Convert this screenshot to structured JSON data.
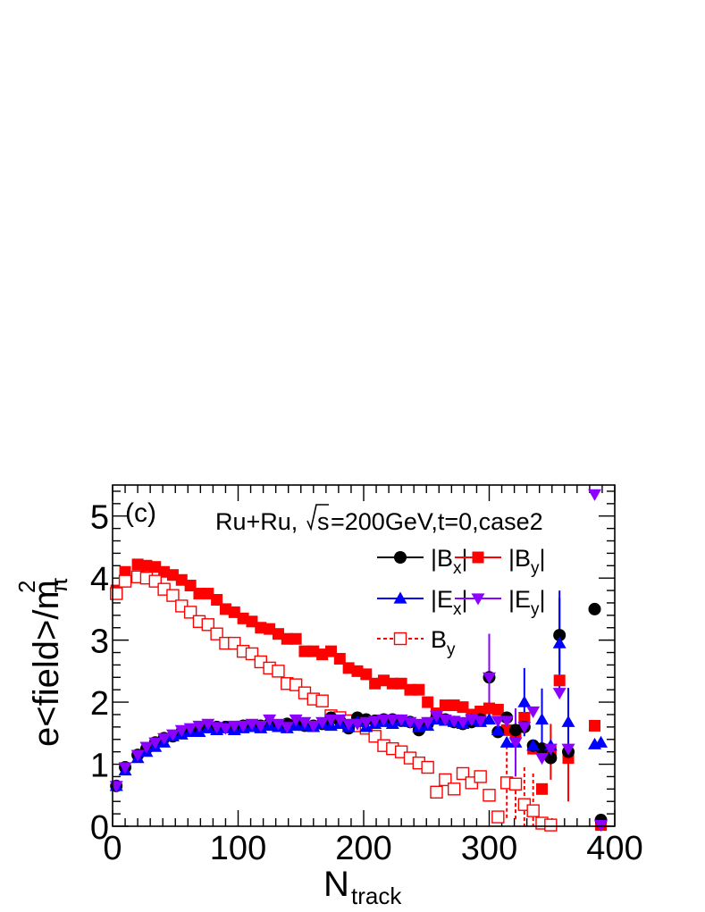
{
  "chart_data": {
    "type": "scatter",
    "panel_label": "(c)",
    "annotation": {
      "prefix": "Ru+Ru,",
      "sqrt": "s",
      "suffix": "=200GeV,t=0,case2"
    },
    "xlabel": {
      "main": "N",
      "sub": "track"
    },
    "ylabel": {
      "main": "e<field>/m",
      "sup": "2",
      "sub": "π"
    },
    "xlim": [
      0,
      400
    ],
    "ylim": [
      0,
      5.5
    ],
    "x_ticks": [
      "0",
      "100",
      "200",
      "300",
      "400"
    ],
    "y_ticks": [
      "0",
      "1",
      "2",
      "3",
      "4",
      "5"
    ],
    "legend": [
      {
        "key": "Bx",
        "base": "|B",
        "sub": "x",
        "tail": "|"
      },
      {
        "key": "By_abs",
        "base": "|B",
        "sub": "y",
        "tail": "|"
      },
      {
        "key": "Ex",
        "base": "|E",
        "sub": "x",
        "tail": "|"
      },
      {
        "key": "Ey",
        "base": "|E",
        "sub": "y",
        "tail": "|"
      },
      {
        "key": "By",
        "base": "B",
        "sub": "y",
        "tail": ""
      }
    ],
    "series": [
      {
        "key": "By_abs",
        "marker": "filled-square",
        "color": "#ff0000",
        "x": [
          3,
          10,
          20,
          27,
          34,
          41,
          48,
          55,
          62,
          69,
          76,
          83,
          90,
          97,
          104,
          111,
          118,
          125,
          132,
          139,
          146,
          153,
          160,
          167,
          174,
          181,
          188,
          195,
          202,
          209,
          216,
          223,
          230,
          237,
          244,
          251,
          258,
          265,
          272,
          279,
          286,
          293,
          300,
          307,
          314,
          321,
          328,
          335,
          342,
          349,
          356,
          363,
          384,
          389
        ],
        "y": [
          3.8,
          4.1,
          4.22,
          4.2,
          4.18,
          4.1,
          4.05,
          3.97,
          3.88,
          3.75,
          3.75,
          3.65,
          3.5,
          3.45,
          3.35,
          3.3,
          3.2,
          3.18,
          3.1,
          3.02,
          3.02,
          2.82,
          2.82,
          2.77,
          2.82,
          2.7,
          2.55,
          2.5,
          2.45,
          2.3,
          2.35,
          2.3,
          2.3,
          2.2,
          2.2,
          2.0,
          1.82,
          1.95,
          1.95,
          1.92,
          1.8,
          1.85,
          1.9,
          1.88,
          1.55,
          1.5,
          1.75,
          1.25,
          0.6,
          1.2,
          2.35,
          1.1,
          1.62,
          0.02
        ],
        "yerr": [
          0,
          0,
          0,
          0,
          0,
          0,
          0,
          0,
          0,
          0,
          0,
          0,
          0,
          0,
          0,
          0,
          0,
          0,
          0,
          0,
          0,
          0,
          0,
          0,
          0,
          0,
          0,
          0,
          0,
          0,
          0,
          0,
          0,
          0,
          0,
          0,
          0,
          0,
          0,
          0,
          0,
          0,
          0,
          0,
          0,
          0,
          0,
          0,
          0,
          0.45,
          0,
          0.7,
          0,
          0
        ]
      },
      {
        "key": "By",
        "marker": "open-square",
        "color": "#ff0000",
        "x": [
          3,
          10,
          20,
          27,
          34,
          41,
          48,
          55,
          62,
          69,
          76,
          83,
          90,
          97,
          104,
          111,
          118,
          125,
          132,
          139,
          146,
          153,
          160,
          167,
          174,
          181,
          188,
          195,
          202,
          209,
          216,
          223,
          230,
          237,
          244,
          251,
          258,
          265,
          272,
          279,
          286,
          293,
          300,
          307,
          314,
          321,
          328,
          335,
          342,
          349
        ],
        "y": [
          3.75,
          3.95,
          4.02,
          4.0,
          3.95,
          3.82,
          3.72,
          3.55,
          3.45,
          3.3,
          3.25,
          3.1,
          2.95,
          2.95,
          2.82,
          2.78,
          2.65,
          2.55,
          2.5,
          2.3,
          2.28,
          2.15,
          2.05,
          2.02,
          1.78,
          1.75,
          1.7,
          1.62,
          1.58,
          1.45,
          1.3,
          1.25,
          1.2,
          1.1,
          1.02,
          0.95,
          0.55,
          0.75,
          0.6,
          0.85,
          0.7,
          0.8,
          0.5,
          0.15,
          0.7,
          0.68,
          0.35,
          0.25,
          0.05,
          0.02
        ],
        "yerr": [
          0,
          0,
          0,
          0,
          0,
          0,
          0,
          0,
          0,
          0,
          0,
          0,
          0,
          0,
          0,
          0,
          0,
          0,
          0,
          0,
          0,
          0,
          0,
          0,
          0,
          0,
          0,
          0,
          0,
          0,
          0,
          0,
          0,
          0,
          0,
          0,
          0,
          0,
          0,
          0,
          0,
          0,
          0,
          0,
          0.6,
          0.6,
          0.6,
          0.6,
          0,
          0
        ]
      },
      {
        "key": "Bx",
        "marker": "filled-circle",
        "color": "#000000",
        "x": [
          3,
          10,
          20,
          27,
          34,
          41,
          48,
          55,
          62,
          69,
          76,
          83,
          90,
          97,
          104,
          111,
          118,
          125,
          132,
          139,
          146,
          153,
          160,
          167,
          174,
          181,
          188,
          195,
          202,
          209,
          216,
          223,
          230,
          237,
          244,
          251,
          258,
          265,
          272,
          279,
          286,
          293,
          300,
          307,
          314,
          321,
          328,
          335,
          342,
          349,
          356,
          363,
          384,
          389
        ],
        "y": [
          0.65,
          0.95,
          1.15,
          1.25,
          1.35,
          1.42,
          1.45,
          1.52,
          1.55,
          1.58,
          1.6,
          1.6,
          1.6,
          1.58,
          1.62,
          1.62,
          1.62,
          1.65,
          1.62,
          1.65,
          1.65,
          1.62,
          1.62,
          1.65,
          1.75,
          1.7,
          1.58,
          1.75,
          1.72,
          1.7,
          1.72,
          1.72,
          1.7,
          1.68,
          1.55,
          1.65,
          1.75,
          1.72,
          1.68,
          1.65,
          1.68,
          1.72,
          2.4,
          1.52,
          1.75,
          1.55,
          1.6,
          1.3,
          1.25,
          1.1,
          3.08,
          1.2,
          3.5,
          0.1
        ],
        "yerr": [
          0,
          0,
          0,
          0,
          0,
          0,
          0,
          0,
          0,
          0,
          0,
          0,
          0,
          0,
          0,
          0,
          0,
          0,
          0,
          0,
          0,
          0,
          0,
          0,
          0,
          0,
          0,
          0,
          0,
          0,
          0,
          0,
          0,
          0,
          0,
          0,
          0,
          0,
          0,
          0,
          0,
          0,
          0.7,
          0,
          0,
          0,
          0,
          0,
          0,
          0,
          0.6,
          0,
          0,
          0
        ]
      },
      {
        "key": "Ex",
        "marker": "filled-triangle-up",
        "color": "#0000ff",
        "x": [
          3,
          10,
          20,
          27,
          34,
          41,
          48,
          55,
          62,
          69,
          76,
          83,
          90,
          97,
          104,
          111,
          118,
          125,
          132,
          139,
          146,
          153,
          160,
          167,
          174,
          181,
          188,
          195,
          202,
          209,
          216,
          223,
          230,
          237,
          244,
          251,
          258,
          265,
          272,
          279,
          286,
          293,
          300,
          307,
          314,
          321,
          328,
          335,
          342,
          349,
          356,
          363,
          384,
          389
        ],
        "y": [
          0.65,
          0.9,
          1.1,
          1.2,
          1.28,
          1.35,
          1.45,
          1.48,
          1.52,
          1.52,
          1.58,
          1.55,
          1.58,
          1.55,
          1.58,
          1.6,
          1.58,
          1.62,
          1.6,
          1.58,
          1.62,
          1.62,
          1.6,
          1.65,
          1.62,
          1.65,
          1.6,
          1.68,
          1.6,
          1.65,
          1.68,
          1.65,
          1.7,
          1.68,
          1.6,
          1.62,
          1.72,
          1.7,
          1.68,
          1.65,
          1.72,
          1.68,
          1.72,
          1.55,
          1.35,
          1.35,
          2.0,
          1.3,
          1.72,
          1.3,
          2.95,
          1.68,
          1.32,
          1.35
        ],
        "yerr": [
          0,
          0,
          0,
          0,
          0,
          0,
          0,
          0,
          0,
          0,
          0,
          0,
          0,
          0,
          0,
          0,
          0,
          0,
          0,
          0,
          0,
          0,
          0,
          0,
          0,
          0,
          0,
          0,
          0,
          0,
          0,
          0,
          0,
          0,
          0,
          0,
          0,
          0,
          0,
          0,
          0,
          0,
          0,
          0,
          0,
          0,
          0.55,
          0,
          0.5,
          0,
          0.85,
          0.55,
          0,
          0
        ]
      },
      {
        "key": "Ey",
        "marker": "filled-triangle-down",
        "color": "#8b00ff",
        "x": [
          3,
          10,
          20,
          27,
          34,
          41,
          48,
          55,
          62,
          69,
          76,
          83,
          90,
          97,
          104,
          111,
          118,
          125,
          132,
          139,
          146,
          153,
          160,
          167,
          174,
          181,
          188,
          195,
          202,
          209,
          216,
          223,
          230,
          237,
          244,
          251,
          258,
          265,
          272,
          279,
          286,
          293,
          300,
          307,
          314,
          321,
          328,
          335,
          342,
          349,
          356,
          363,
          384,
          389
        ],
        "y": [
          0.65,
          0.95,
          1.15,
          1.28,
          1.35,
          1.42,
          1.48,
          1.55,
          1.58,
          1.62,
          1.65,
          1.6,
          1.58,
          1.62,
          1.62,
          1.65,
          1.62,
          1.72,
          1.65,
          1.6,
          1.72,
          1.68,
          1.62,
          1.68,
          1.72,
          1.72,
          1.65,
          1.65,
          1.68,
          1.7,
          1.72,
          1.72,
          1.72,
          1.68,
          1.65,
          1.68,
          1.78,
          1.72,
          1.7,
          1.68,
          1.72,
          1.7,
          2.4,
          1.7,
          1.7,
          1.35,
          1.6,
          1.85,
          1.1,
          1.25,
          2.15,
          1.25,
          5.35,
          0.02
        ],
        "yerr": [
          0,
          0,
          0,
          0,
          0,
          0,
          0,
          0,
          0,
          0,
          0,
          0,
          0,
          0,
          0,
          0,
          0,
          0,
          0,
          0,
          0,
          0,
          0,
          0,
          0,
          0,
          0,
          0,
          0,
          0,
          0,
          0,
          0,
          0,
          0,
          0,
          0,
          0,
          0,
          0,
          0,
          0,
          0.7,
          0,
          0,
          0.55,
          0,
          0,
          0,
          0,
          0,
          0,
          0,
          0
        ]
      }
    ]
  }
}
